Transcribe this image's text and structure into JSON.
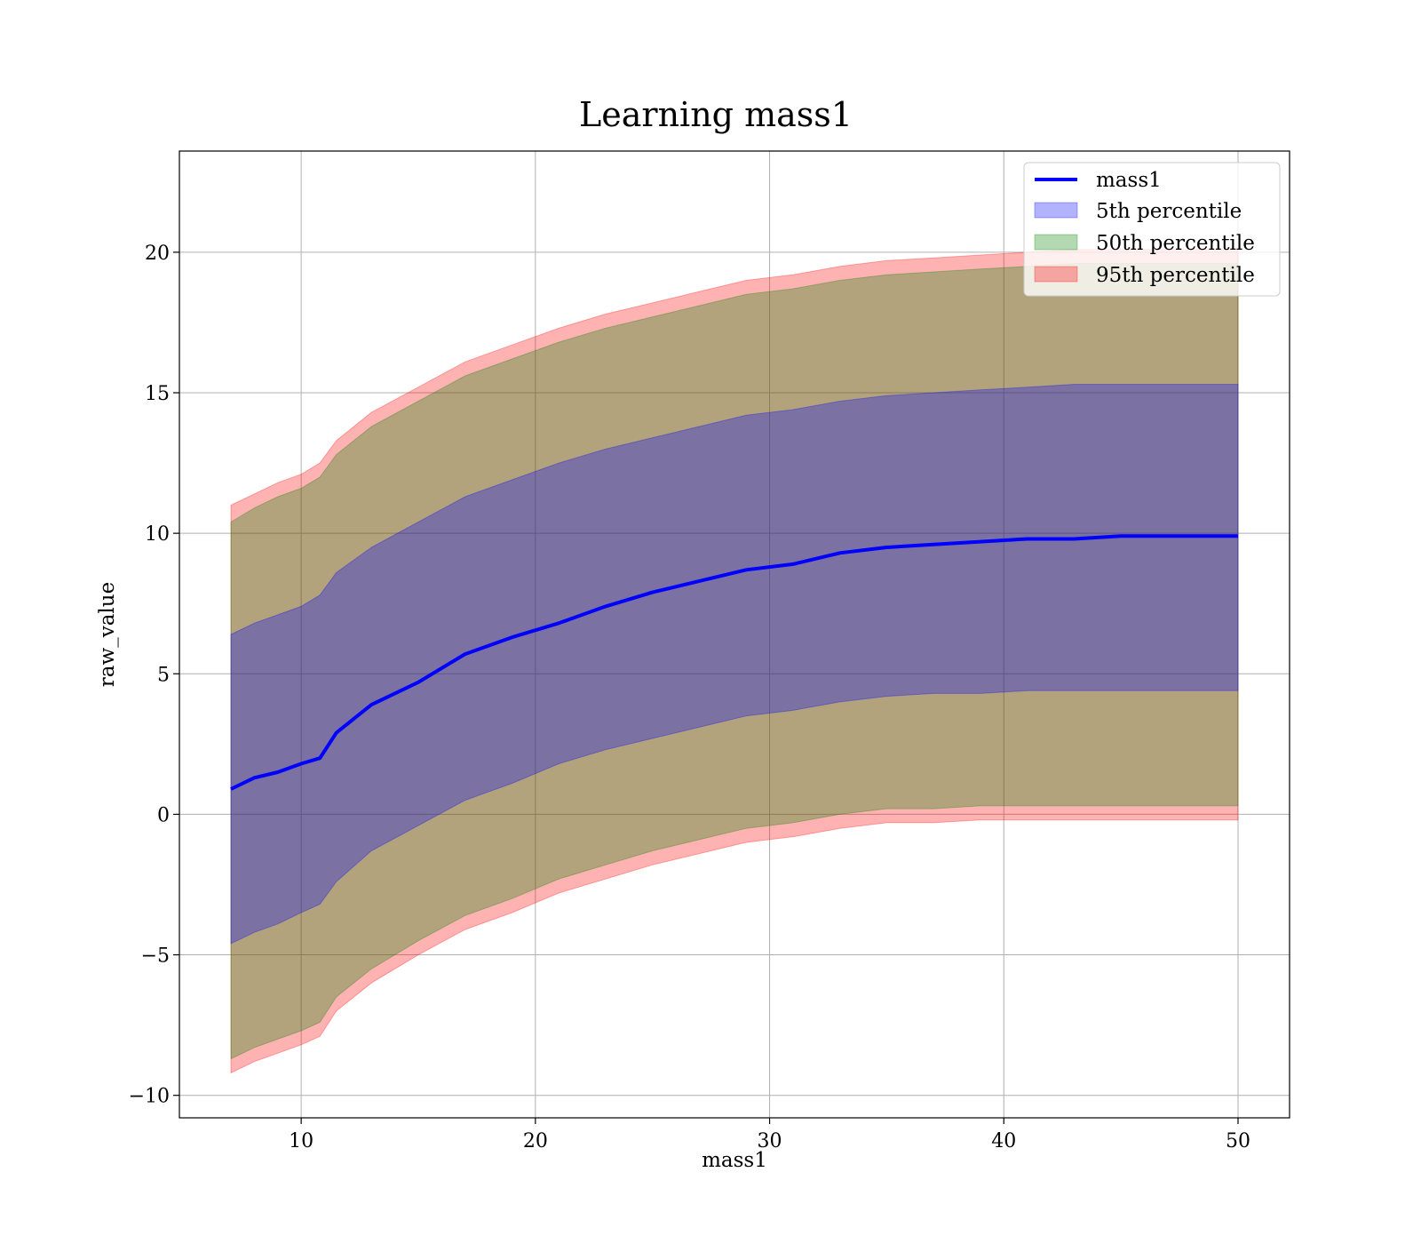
{
  "chart_data": {
    "type": "area",
    "title": "Learning mass1",
    "xlabel": "mass1",
    "ylabel": "raw_value",
    "xlim": [
      4.8,
      52.2
    ],
    "ylim": [
      -10.8,
      23.6
    ],
    "xticks": [
      10,
      20,
      30,
      40,
      50
    ],
    "yticks": [
      -10,
      -5,
      0,
      5,
      10,
      15,
      20
    ],
    "grid": true,
    "legend_position": "top-right",
    "legend": [
      "mass1",
      "5th percentile",
      "50th percentile",
      "95th percentile"
    ],
    "x": [
      7,
      8,
      9,
      10,
      10.8,
      11.5,
      13,
      15,
      17,
      19,
      21,
      23,
      25,
      27,
      29,
      31,
      33,
      35,
      37,
      39,
      41,
      43,
      45,
      47,
      49,
      50
    ],
    "series": [
      {
        "name": "mass1",
        "kind": "line",
        "color": "#0000ff",
        "values": [
          0.9,
          1.3,
          1.5,
          1.8,
          2.0,
          2.9,
          3.9,
          4.7,
          5.7,
          6.3,
          6.8,
          7.4,
          7.9,
          8.3,
          8.7,
          8.9,
          9.3,
          9.5,
          9.6,
          9.7,
          9.8,
          9.8,
          9.9,
          9.9,
          9.9,
          9.9
        ]
      },
      {
        "name": "5th percentile",
        "kind": "band",
        "color": "#0000ff",
        "lower": [
          -4.6,
          -4.2,
          -3.9,
          -3.5,
          -3.2,
          -2.4,
          -1.3,
          -0.4,
          0.5,
          1.1,
          1.8,
          2.3,
          2.7,
          3.1,
          3.5,
          3.7,
          4.0,
          4.2,
          4.3,
          4.3,
          4.4,
          4.4,
          4.4,
          4.4,
          4.4,
          4.4
        ],
        "upper": [
          6.4,
          6.8,
          7.1,
          7.4,
          7.8,
          8.6,
          9.5,
          10.4,
          11.3,
          11.9,
          12.5,
          13.0,
          13.4,
          13.8,
          14.2,
          14.4,
          14.7,
          14.9,
          15.0,
          15.1,
          15.2,
          15.3,
          15.3,
          15.3,
          15.3,
          15.3
        ]
      },
      {
        "name": "50th percentile",
        "kind": "band",
        "color": "#008000",
        "lower": [
          -8.7,
          -8.3,
          -8.0,
          -7.7,
          -7.4,
          -6.5,
          -5.5,
          -4.5,
          -3.6,
          -3.0,
          -2.3,
          -1.8,
          -1.3,
          -0.9,
          -0.5,
          -0.3,
          0.0,
          0.2,
          0.2,
          0.3,
          0.3,
          0.3,
          0.3,
          0.3,
          0.3,
          0.3
        ],
        "upper": [
          10.4,
          10.9,
          11.3,
          11.6,
          12.0,
          12.8,
          13.8,
          14.7,
          15.6,
          16.2,
          16.8,
          17.3,
          17.7,
          18.1,
          18.5,
          18.7,
          19.0,
          19.2,
          19.3,
          19.4,
          19.5,
          19.6,
          19.6,
          19.6,
          19.6,
          19.6
        ]
      },
      {
        "name": "95th percentile",
        "kind": "band",
        "color": "#ff0000",
        "lower": [
          -9.2,
          -8.8,
          -8.5,
          -8.2,
          -7.9,
          -7.0,
          -6.0,
          -5.0,
          -4.1,
          -3.5,
          -2.8,
          -2.3,
          -1.8,
          -1.4,
          -1.0,
          -0.8,
          -0.5,
          -0.3,
          -0.3,
          -0.2,
          -0.2,
          -0.2,
          -0.2,
          -0.2,
          -0.2,
          -0.2
        ],
        "upper": [
          11.0,
          11.4,
          11.8,
          12.1,
          12.5,
          13.3,
          14.3,
          15.2,
          16.1,
          16.7,
          17.3,
          17.8,
          18.2,
          18.6,
          19.0,
          19.2,
          19.5,
          19.7,
          19.8,
          19.9,
          20.0,
          20.1,
          20.1,
          20.1,
          20.1,
          20.1
        ]
      }
    ]
  }
}
